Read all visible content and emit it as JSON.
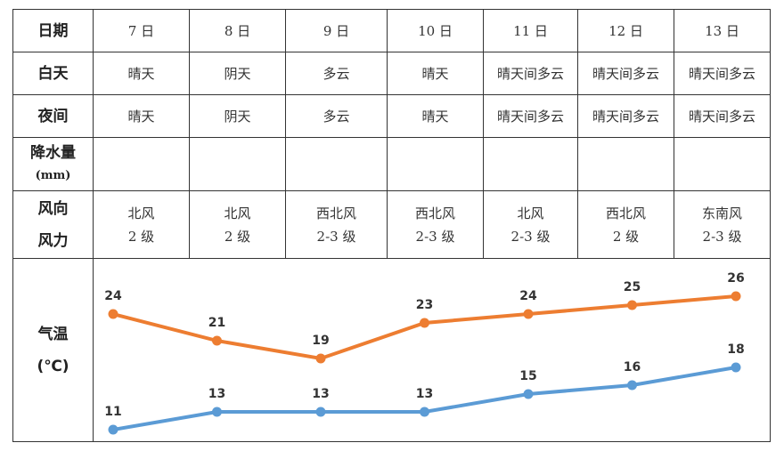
{
  "headers": {
    "date": "日期",
    "day": "白天",
    "night": "夜间",
    "rain": "降水量",
    "rain_unit": "(mm)",
    "wind_dir": "风向",
    "wind_force": "风力",
    "temp": "气温",
    "temp_unit": "(℃)"
  },
  "days": [
    {
      "date": "7 日",
      "day": "晴天",
      "night": "晴天",
      "wind": "北风",
      "force": "2 级"
    },
    {
      "date": "8 日",
      "day": "阴天",
      "night": "阴天",
      "wind": "北风",
      "force": "2 级"
    },
    {
      "date": "9 日",
      "day": "多云",
      "night": "多云",
      "wind": "西北风",
      "force": "2-3 级"
    },
    {
      "date": "10 日",
      "day": "晴天",
      "night": "晴天",
      "wind": "西北风",
      "force": "2-3 级"
    },
    {
      "date": "11 日",
      "day": "晴天间多云",
      "night": "晴天间多云",
      "wind": "北风",
      "force": "2-3 级"
    },
    {
      "date": "12 日",
      "day": "晴天间多云",
      "night": "晴天间多云",
      "wind": "西北风",
      "force": "2 级"
    },
    {
      "date": "13 日",
      "day": "晴天间多云",
      "night": "晴天间多云",
      "wind": "东南风",
      "force": "2-3 级"
    }
  ],
  "chart_data": {
    "type": "line",
    "categories": [
      "7 日",
      "8 日",
      "9 日",
      "10 日",
      "11 日",
      "12 日",
      "13 日"
    ],
    "series": [
      {
        "values": [
          24,
          21,
          19,
          23,
          24,
          25,
          26
        ],
        "color": "#ED7D31"
      },
      {
        "values": [
          11,
          13,
          13,
          13,
          15,
          16,
          18
        ],
        "color": "#5B9BD5"
      }
    ],
    "data_labels": true,
    "grid": false
  }
}
